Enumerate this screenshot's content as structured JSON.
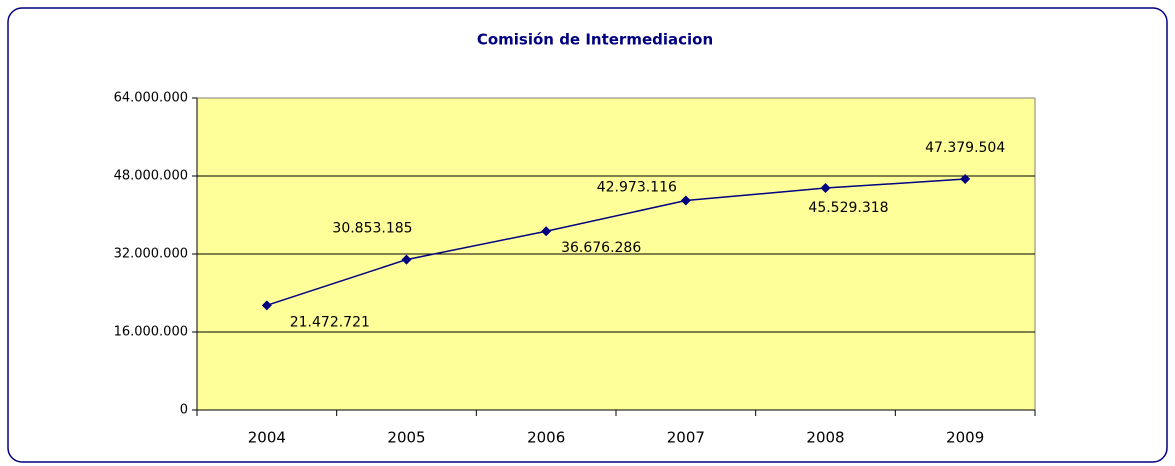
{
  "chart_data": {
    "type": "line",
    "title": "Comisión de Intermediacion",
    "categories": [
      "2004",
      "2005",
      "2006",
      "2007",
      "2008",
      "2009"
    ],
    "series": [
      {
        "color": "#000080",
        "values": [
          21472721,
          30853185,
          36676286,
          42973116,
          45529318,
          47379504
        ],
        "value_labels": [
          "21.472.721",
          "30.853.185",
          "36.676.286",
          "42.973.116",
          "45.529.318",
          "47.379.504"
        ]
      }
    ],
    "ylim": [
      0,
      64000000
    ],
    "yticks": [
      0,
      {
        "value": 16000000,
        "label": "16.000.000"
      },
      {
        "value": 32000000,
        "label": "32.000.000"
      },
      {
        "value": 48000000,
        "label": "48.000.000"
      },
      {
        "value": 64000000,
        "label": "64.000.000"
      }
    ],
    "grid": true,
    "plot_background": "#ffff99"
  }
}
